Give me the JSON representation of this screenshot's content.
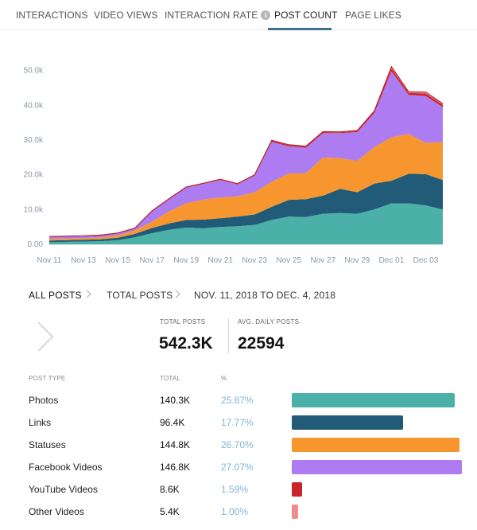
{
  "tabs": [
    {
      "label": "INTERACTIONS"
    },
    {
      "label": "VIDEO VIEWS"
    },
    {
      "label": "INTERACTION RATE"
    },
    {
      "label": "POST COUNT"
    },
    {
      "label": "PAGE LIKES"
    }
  ],
  "info_icon_glyph": "i",
  "breadcrumb": {
    "all_posts": "ALL POSTS",
    "total_posts": "TOTAL POSTS",
    "date_range": "NOV. 11, 2018 TO DEC. 4, 2018"
  },
  "stats": {
    "total_label": "TOTAL POSTS",
    "total_value": "542.3K",
    "avg_label": "AVG. DAILY POSTS",
    "avg_value": "22594"
  },
  "table": {
    "headers": {
      "type": "POST TYPE",
      "total": "TOTAL",
      "pct": "%"
    },
    "rows": [
      {
        "name": "Photos",
        "total": "140.3K",
        "pct": "25.87%",
        "share": 25.87,
        "color": "#4bb0a8"
      },
      {
        "name": "Links",
        "total": "96.4K",
        "pct": "17.77%",
        "share": 17.77,
        "color": "#215b78"
      },
      {
        "name": "Statuses",
        "total": "144.8K",
        "pct": "26.70%",
        "share": 26.7,
        "color": "#f7962f"
      },
      {
        "name": "Facebook Videos",
        "total": "146.8K",
        "pct": "27.07%",
        "share": 27.07,
        "color": "#ac7cf0"
      },
      {
        "name": "YouTube Videos",
        "total": "8.6K",
        "pct": "1.59%",
        "share": 1.59,
        "color": "#c8242c"
      },
      {
        "name": "Other Videos",
        "total": "5.4K",
        "pct": "1.00%",
        "share": 1.0,
        "color": "#f18c8c"
      }
    ]
  },
  "chart_data": {
    "type": "area",
    "stacked": true,
    "title": "",
    "xlabel": "",
    "ylabel": "",
    "ylim": [
      0,
      52000
    ],
    "y_ticks": [
      0,
      10000,
      20000,
      30000,
      40000,
      50000
    ],
    "y_tick_labels": [
      "0.00",
      "10.0k",
      "20.0k",
      "30.0k",
      "40.0k",
      "50.0k"
    ],
    "x": [
      "Nov 11",
      "Nov 12",
      "Nov 13",
      "Nov 14",
      "Nov 15",
      "Nov 16",
      "Nov 17",
      "Nov 18",
      "Nov 19",
      "Nov 20",
      "Nov 21",
      "Nov 22",
      "Nov 23",
      "Nov 24",
      "Nov 25",
      "Nov 26",
      "Nov 27",
      "Nov 28",
      "Nov 29",
      "Nov 30",
      "Dec 01",
      "Dec 02",
      "Dec 03",
      "Dec 04"
    ],
    "x_tick_labels": [
      "Nov 11",
      "Nov 13",
      "Nov 15",
      "Nov 17",
      "Nov 19",
      "Nov 21",
      "Nov 23",
      "Nov 25",
      "Nov 27",
      "Nov 29",
      "Dec 01",
      "Dec 03"
    ],
    "series": [
      {
        "name": "Photos",
        "color": "#4bb0a8",
        "values": [
          600,
          700,
          800,
          900,
          1200,
          2000,
          3200,
          4200,
          4800,
          4600,
          5000,
          5200,
          5600,
          7000,
          8000,
          7800,
          8800,
          9000,
          8800,
          10000,
          11800,
          11800,
          11200,
          10000
        ]
      },
      {
        "name": "Links",
        "color": "#215b78",
        "values": [
          500,
          500,
          500,
          550,
          700,
          1000,
          1500,
          1800,
          2200,
          2500,
          2500,
          2800,
          3000,
          3800,
          4800,
          5200,
          5200,
          7000,
          6200,
          7500,
          6500,
          8500,
          9000,
          8500
        ]
      },
      {
        "name": "Statuses",
        "color": "#f7962f",
        "values": [
          500,
          500,
          500,
          550,
          700,
          1000,
          1800,
          3500,
          4800,
          5800,
          6000,
          5800,
          6400,
          7200,
          7600,
          7500,
          11000,
          8800,
          9000,
          10500,
          12500,
          11500,
          9000,
          11000
        ]
      },
      {
        "name": "Facebook Videos",
        "color": "#ac7cf0",
        "values": [
          600,
          600,
          600,
          600,
          600,
          600,
          3000,
          3500,
          4500,
          4500,
          5000,
          3500,
          4800,
          11500,
          7800,
          7300,
          7000,
          7200,
          8300,
          9800,
          19000,
          11200,
          13500,
          10000
        ]
      },
      {
        "name": "YouTube Videos",
        "color": "#c8242c",
        "values": [
          30,
          30,
          30,
          30,
          30,
          30,
          60,
          80,
          100,
          100,
          150,
          100,
          150,
          300,
          300,
          300,
          300,
          250,
          300,
          400,
          800,
          600,
          700,
          600
        ]
      },
      {
        "name": "Other Videos",
        "color": "#f18c8c",
        "values": [
          20,
          20,
          20,
          20,
          20,
          20,
          40,
          60,
          60,
          60,
          80,
          60,
          80,
          150,
          150,
          150,
          150,
          120,
          150,
          200,
          500,
          300,
          400,
          400
        ]
      }
    ]
  }
}
